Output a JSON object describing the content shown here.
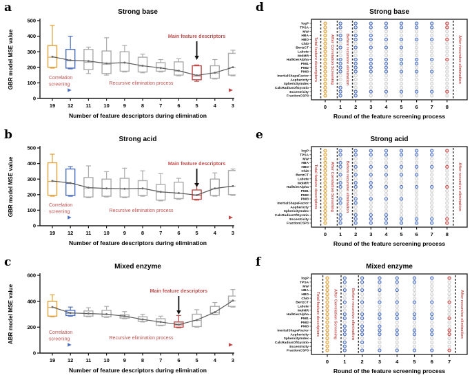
{
  "colors": {
    "orange": "#DFA13C",
    "blue": "#4D6FBE",
    "red": "#BE4B48",
    "gray": "#ABABAB",
    "trend": "#595959",
    "annotation": "#C0504D",
    "arrow_black": "#111111",
    "inactive": "#D0D0D0",
    "axis": "#1A1A1A",
    "mean_marker": "#6E6E6E",
    "dot_fill_orange": "#FAEFD8",
    "dot_fill_blue": "#DFE6F6",
    "dot_fill_red": "#F2D8D8",
    "dot_fill_inactive": "#F5F5F5"
  },
  "features": [
    "logP",
    "TPSA",
    "MW",
    "HBA",
    "HBD",
    "Chi0",
    "BertzCT",
    "Labute",
    "MolMR",
    "HallKierAlpha",
    "PMI1",
    "PMI2",
    "PMI3",
    "InertialShapeFactor",
    "Asphericity",
    "SphericityIndex",
    "CalcRadiusOfGyratio",
    "Eccentricity",
    "FractionCSP3"
  ],
  "chart_data": [
    {
      "panel_letter": "a",
      "type": "box",
      "title": "Strong base",
      "xlabel": "Number of feature descriptors during elimination",
      "ylabel": "GBR model MSE value",
      "categories": [
        19,
        12,
        11,
        10,
        9,
        8,
        7,
        6,
        5,
        4,
        3
      ],
      "ylim": [
        0,
        500
      ],
      "yticks": [
        0,
        100,
        200,
        300,
        400,
        500
      ],
      "highlight_category": 5,
      "boxes": [
        {
          "cat": 19,
          "low": 195,
          "q1": 200,
          "med": 265,
          "q3": 340,
          "high": 470,
          "mean": 268,
          "color": "orange"
        },
        {
          "cat": 12,
          "low": 190,
          "q1": 195,
          "med": 243,
          "q3": 315,
          "high": 400,
          "mean": 245,
          "color": "blue"
        },
        {
          "cat": 11,
          "low": 160,
          "q1": 185,
          "med": 232,
          "q3": 315,
          "high": 330,
          "mean": 240,
          "color": "gray"
        },
        {
          "cat": 10,
          "low": 150,
          "q1": 160,
          "med": 220,
          "q3": 305,
          "high": 390,
          "mean": 225,
          "color": "gray"
        },
        {
          "cat": 9,
          "low": 170,
          "q1": 175,
          "med": 228,
          "q3": 300,
          "high": 340,
          "mean": 230,
          "color": "gray"
        },
        {
          "cat": 8,
          "low": 165,
          "q1": 170,
          "med": 208,
          "q3": 265,
          "high": 285,
          "mean": 210,
          "color": "gray"
        },
        {
          "cat": 7,
          "low": 170,
          "q1": 175,
          "med": 195,
          "q3": 230,
          "high": 250,
          "mean": 196,
          "color": "gray"
        },
        {
          "cat": 6,
          "low": 145,
          "q1": 150,
          "med": 175,
          "q3": 235,
          "high": 255,
          "mean": 178,
          "color": "gray"
        },
        {
          "cat": 5,
          "low": 110,
          "q1": 120,
          "med": 145,
          "q3": 210,
          "high": 215,
          "mean": 148,
          "color": "red"
        },
        {
          "cat": 4,
          "low": 125,
          "q1": 130,
          "med": 163,
          "q3": 210,
          "high": 250,
          "mean": 165,
          "color": "gray"
        },
        {
          "cat": 3,
          "low": 145,
          "q1": 150,
          "med": 198,
          "q3": 290,
          "high": 310,
          "mean": 200,
          "color": "gray"
        }
      ],
      "annotations": {
        "main_feature": "Main feature descriptors",
        "correlation_line1": "Correlation",
        "correlation_line2": "screening",
        "recursive": "Recursive elimination process"
      }
    },
    {
      "panel_letter": "d",
      "type": "dot-matrix",
      "title": "Strong base",
      "xlabel": "Round of the feature screening process",
      "rounds": [
        0,
        1,
        2,
        3,
        4,
        5,
        6,
        7,
        8
      ],
      "stage_labels": [
        "Total feature descriptors",
        "After Correlation Screening",
        "Before recursive elimination",
        "After recursive elimination"
      ],
      "active_by_round": [
        [
          0,
          1,
          2,
          3,
          4,
          5,
          6,
          7,
          8,
          9,
          10,
          11,
          12,
          13,
          14,
          15,
          16,
          17,
          18
        ],
        [
          0,
          1,
          3,
          4,
          6,
          9,
          10,
          11,
          12,
          16,
          17,
          18
        ],
        [
          0,
          1,
          3,
          4,
          6,
          9,
          10,
          11,
          12,
          17,
          18
        ],
        [
          0,
          1,
          3,
          4,
          6,
          9,
          10,
          11,
          12,
          17
        ],
        [
          0,
          1,
          4,
          6,
          9,
          10,
          11,
          12,
          17
        ],
        [
          0,
          1,
          4,
          6,
          9,
          10,
          12,
          17
        ],
        [
          0,
          1,
          4,
          9,
          10,
          12,
          17
        ],
        [
          0,
          1,
          4,
          9,
          12,
          17
        ],
        [
          0,
          1,
          4,
          9,
          17
        ]
      ],
      "final_features": [
        "logP",
        "TPSA",
        "HBD",
        "HallKierAlpha",
        "Eccentricity"
      ]
    },
    {
      "panel_letter": "b",
      "type": "box",
      "title": "Strong acid",
      "xlabel": "Number of feature descriptors during elimination",
      "ylabel": "GBR model MSE value",
      "categories": [
        19,
        12,
        11,
        10,
        9,
        8,
        7,
        6,
        5,
        4,
        3
      ],
      "ylim": [
        0,
        500
      ],
      "yticks": [
        0,
        100,
        200,
        300,
        400,
        500
      ],
      "highlight_category": 5,
      "boxes": [
        {
          "cat": 19,
          "low": 190,
          "q1": 195,
          "med": 285,
          "q3": 405,
          "high": 460,
          "mean": 288,
          "color": "orange"
        },
        {
          "cat": 12,
          "low": 190,
          "q1": 195,
          "med": 272,
          "q3": 365,
          "high": 380,
          "mean": 275,
          "color": "blue"
        },
        {
          "cat": 11,
          "low": 180,
          "q1": 185,
          "med": 243,
          "q3": 310,
          "high": 385,
          "mean": 245,
          "color": "gray"
        },
        {
          "cat": 10,
          "low": 185,
          "q1": 190,
          "med": 238,
          "q3": 300,
          "high": 348,
          "mean": 240,
          "color": "gray"
        },
        {
          "cat": 9,
          "low": 180,
          "q1": 185,
          "med": 236,
          "q3": 305,
          "high": 370,
          "mean": 238,
          "color": "gray"
        },
        {
          "cat": 8,
          "low": 190,
          "q1": 195,
          "med": 238,
          "q3": 290,
          "high": 353,
          "mean": 240,
          "color": "gray"
        },
        {
          "cat": 7,
          "low": 160,
          "q1": 165,
          "med": 216,
          "q3": 265,
          "high": 335,
          "mean": 218,
          "color": "gray"
        },
        {
          "cat": 6,
          "low": 170,
          "q1": 175,
          "med": 208,
          "q3": 280,
          "high": 305,
          "mean": 210,
          "color": "gray"
        },
        {
          "cat": 5,
          "low": 165,
          "q1": 170,
          "med": 196,
          "q3": 230,
          "high": 270,
          "mean": 197,
          "color": "red"
        },
        {
          "cat": 4,
          "low": 190,
          "q1": 195,
          "med": 238,
          "q3": 300,
          "high": 340,
          "mean": 240,
          "color": "gray"
        },
        {
          "cat": 3,
          "low": 195,
          "q1": 200,
          "med": 253,
          "q3": 355,
          "high": 365,
          "mean": 255,
          "color": "gray"
        }
      ],
      "annotations": {
        "main_feature": "Main feature descriptors",
        "correlation_line1": "Correlation",
        "correlation_line2": "screening",
        "recursive": "Recursive elimination process"
      }
    },
    {
      "panel_letter": "e",
      "type": "dot-matrix",
      "title": "Strong acid",
      "xlabel": "Round of the feature screening process",
      "rounds": [
        0,
        1,
        2,
        3,
        4,
        5,
        6,
        7,
        8
      ],
      "stage_labels": [
        "Total feature descriptors",
        "After Correlation Screening",
        "Before recursive elimination",
        "After recursive elimination"
      ],
      "active_by_round": [
        [
          0,
          1,
          2,
          3,
          4,
          5,
          6,
          7,
          8,
          9,
          10,
          11,
          12,
          13,
          14,
          15,
          16,
          17,
          18
        ],
        [
          0,
          1,
          3,
          4,
          6,
          8,
          9,
          12,
          13,
          16,
          17,
          18
        ],
        [
          0,
          1,
          4,
          6,
          8,
          9,
          12,
          13,
          16,
          17,
          18
        ],
        [
          0,
          1,
          4,
          6,
          8,
          9,
          12,
          16,
          17,
          18
        ],
        [
          0,
          1,
          4,
          6,
          9,
          12,
          16,
          17,
          18
        ],
        [
          0,
          1,
          4,
          6,
          9,
          12,
          17,
          18
        ],
        [
          0,
          1,
          4,
          6,
          9,
          17,
          18
        ],
        [
          0,
          1,
          4,
          9,
          17,
          18
        ],
        [
          0,
          4,
          9,
          17,
          18
        ]
      ],
      "final_features": [
        "logP",
        "HBD",
        "HallKierAlpha",
        "Eccentricity",
        "FractionCSP3"
      ]
    },
    {
      "panel_letter": "c",
      "type": "box",
      "title": "Mixed enzyme",
      "xlabel": "Number of feature descriptors during elimination",
      "ylabel": "ABR model MSE value",
      "categories": [
        19,
        12,
        11,
        10,
        9,
        8,
        7,
        6,
        5,
        4,
        3
      ],
      "ylim": [
        0,
        600
      ],
      "yticks": [
        0,
        200,
        400,
        600
      ],
      "highlight_category": 6,
      "boxes": [
        {
          "cat": 19,
          "low": 280,
          "q1": 285,
          "med": 352,
          "q3": 400,
          "high": 450,
          "mean": 355,
          "color": "orange"
        },
        {
          "cat": 12,
          "low": 285,
          "q1": 290,
          "med": 308,
          "q3": 330,
          "high": 355,
          "mean": 310,
          "color": "blue"
        },
        {
          "cat": 11,
          "low": 280,
          "q1": 285,
          "med": 303,
          "q3": 325,
          "high": 350,
          "mean": 305,
          "color": "gray"
        },
        {
          "cat": 10,
          "low": 275,
          "q1": 280,
          "med": 298,
          "q3": 330,
          "high": 360,
          "mean": 300,
          "color": "gray"
        },
        {
          "cat": 9,
          "low": 265,
          "q1": 270,
          "med": 283,
          "q3": 295,
          "high": 320,
          "mean": 285,
          "color": "gray"
        },
        {
          "cat": 8,
          "low": 240,
          "q1": 245,
          "med": 258,
          "q3": 280,
          "high": 300,
          "mean": 260,
          "color": "gray"
        },
        {
          "cat": 7,
          "low": 210,
          "q1": 215,
          "med": 238,
          "q3": 265,
          "high": 285,
          "mean": 240,
          "color": "gray"
        },
        {
          "cat": 6,
          "low": 195,
          "q1": 200,
          "med": 218,
          "q3": 240,
          "high": 290,
          "mean": 220,
          "color": "red"
        },
        {
          "cat": 5,
          "low": 200,
          "q1": 205,
          "med": 252,
          "q3": 300,
          "high": 335,
          "mean": 255,
          "color": "gray"
        },
        {
          "cat": 4,
          "low": 295,
          "q1": 300,
          "med": 313,
          "q3": 360,
          "high": 390,
          "mean": 315,
          "color": "gray"
        },
        {
          "cat": 3,
          "low": 355,
          "q1": 360,
          "med": 403,
          "q3": 440,
          "high": 490,
          "mean": 405,
          "color": "gray"
        }
      ],
      "annotations": {
        "main_feature": "Main feature descriptors",
        "correlation_line1": "Correlation",
        "correlation_line2": "screening",
        "recursive": "Recursive elimination process"
      }
    },
    {
      "panel_letter": "f",
      "type": "dot-matrix",
      "title": "Mixed enzyme",
      "xlabel": "Round of the feature screening process",
      "rounds": [
        0,
        1,
        2,
        3,
        4,
        5,
        6,
        7
      ],
      "stage_labels": [
        "Total feature descriptors",
        "After Correlation Screening",
        "Before recursive elimination",
        "After recursive elimination"
      ],
      "active_by_round": [
        [
          0,
          1,
          2,
          3,
          4,
          5,
          6,
          7,
          8,
          9,
          10,
          11,
          12,
          13,
          14,
          15,
          16,
          17,
          18
        ],
        [
          0,
          1,
          3,
          6,
          9,
          10,
          12,
          13,
          14,
          16,
          17,
          18
        ],
        [
          0,
          1,
          3,
          6,
          9,
          10,
          12,
          13,
          14,
          16,
          18
        ],
        [
          0,
          1,
          3,
          6,
          9,
          10,
          12,
          13,
          14,
          18
        ],
        [
          0,
          1,
          3,
          6,
          9,
          10,
          13,
          14,
          18
        ],
        [
          0,
          1,
          6,
          9,
          10,
          13,
          14,
          18
        ],
        [
          0,
          6,
          9,
          10,
          13,
          14,
          18
        ],
        [
          0,
          6,
          10,
          13,
          14,
          18
        ]
      ],
      "final_features": [
        "logP",
        "BertzCT",
        "PMI1",
        "InertialShapeFactor",
        "Asphericity",
        "FractionCSP3"
      ]
    }
  ]
}
